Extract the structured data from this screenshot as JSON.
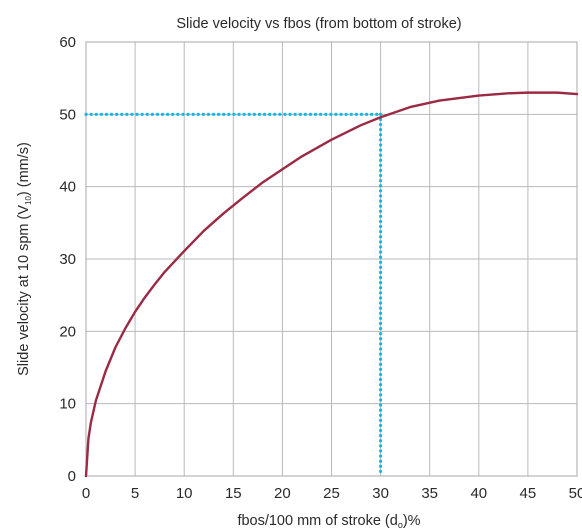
{
  "chart_data": {
    "type": "line",
    "title": "Slide velocity vs fbos (from bottom of stroke)",
    "xlabel": {
      "main": "fbos/100 mm of stroke (d",
      "sub": "o",
      "suffix": ")%"
    },
    "ylabel": {
      "main": "Slide velocity at 10 spm (V",
      "sub": "10",
      "suffix": ") (mm/s)"
    },
    "xlim": [
      0,
      50
    ],
    "ylim": [
      0,
      60
    ],
    "xticks": [
      0,
      5,
      10,
      15,
      20,
      25,
      30,
      35,
      40,
      45,
      50
    ],
    "yticks": [
      0,
      10,
      20,
      30,
      40,
      50,
      60
    ],
    "grid": true,
    "series": [
      {
        "color": "#9b2a45",
        "x": [
          0,
          0.25,
          0.5,
          1,
          2,
          3,
          4,
          5,
          6,
          7,
          8,
          10,
          12,
          14,
          16,
          18,
          20,
          22,
          25,
          28,
          30,
          33,
          36,
          40,
          43,
          45,
          48,
          50
        ],
        "y": [
          0,
          5.2,
          7.4,
          10.4,
          14.5,
          17.8,
          20.4,
          22.7,
          24.7,
          26.5,
          28.2,
          31.1,
          33.9,
          36.3,
          38.5,
          40.6,
          42.4,
          44.2,
          46.5,
          48.5,
          49.6,
          51.0,
          51.9,
          52.6,
          52.9,
          53.0,
          53.0,
          52.8
        ]
      }
    ],
    "annotations": [
      {
        "type": "guide",
        "style": "dotted",
        "color": "#18b6e6",
        "x": 30,
        "y": 50
      }
    ]
  }
}
